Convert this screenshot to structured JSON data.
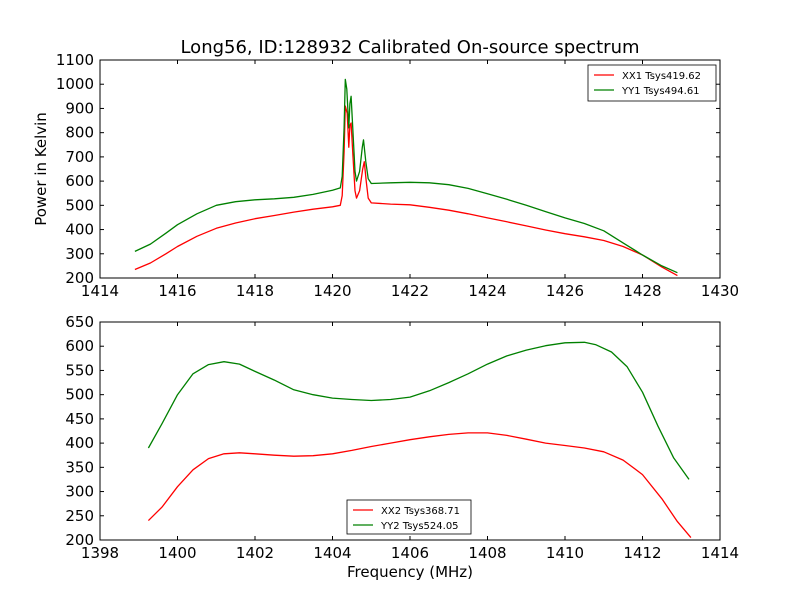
{
  "title": "Long56, ID:128932 Calibrated On-source spectrum",
  "chart_data": [
    {
      "type": "line",
      "ylabel": "Power in Kelvin",
      "xlabel": "",
      "xlim": [
        1414,
        1430
      ],
      "ylim": [
        200,
        1100
      ],
      "xticks": [
        1414,
        1416,
        1418,
        1420,
        1422,
        1424,
        1426,
        1428,
        1430
      ],
      "yticks": [
        200,
        300,
        400,
        500,
        600,
        700,
        800,
        900,
        1000,
        1100
      ],
      "grid": false,
      "legend_position": "top-right",
      "series": [
        {
          "name": "XX1 Tsys419.62",
          "color": "#ff0000",
          "points": [
            [
              1414.9,
              235
            ],
            [
              1415.3,
              262
            ],
            [
              1415.7,
              300
            ],
            [
              1416.0,
              330
            ],
            [
              1416.5,
              372
            ],
            [
              1417.0,
              405
            ],
            [
              1417.5,
              427
            ],
            [
              1418.0,
              445
            ],
            [
              1418.5,
              458
            ],
            [
              1419.0,
              472
            ],
            [
              1419.5,
              484
            ],
            [
              1420.0,
              494
            ],
            [
              1420.2,
              500
            ],
            [
              1420.25,
              540
            ],
            [
              1420.3,
              720
            ],
            [
              1420.33,
              910
            ],
            [
              1420.38,
              880
            ],
            [
              1420.42,
              740
            ],
            [
              1420.45,
              830
            ],
            [
              1420.48,
              840
            ],
            [
              1420.53,
              700
            ],
            [
              1420.58,
              560
            ],
            [
              1420.62,
              530
            ],
            [
              1420.7,
              560
            ],
            [
              1420.78,
              650
            ],
            [
              1420.82,
              680
            ],
            [
              1420.87,
              600
            ],
            [
              1420.92,
              530
            ],
            [
              1421.0,
              510
            ],
            [
              1421.5,
              505
            ],
            [
              1422.0,
              502
            ],
            [
              1422.5,
              492
            ],
            [
              1423.0,
              480
            ],
            [
              1423.5,
              465
            ],
            [
              1424.0,
              448
            ],
            [
              1424.5,
              432
            ],
            [
              1425.0,
              415
            ],
            [
              1425.5,
              398
            ],
            [
              1426.0,
              383
            ],
            [
              1426.5,
              370
            ],
            [
              1427.0,
              355
            ],
            [
              1427.5,
              330
            ],
            [
              1428.0,
              295
            ],
            [
              1428.5,
              245
            ],
            [
              1428.9,
              210
            ]
          ]
        },
        {
          "name": "YY1 Tsys494.61",
          "color": "#008000",
          "points": [
            [
              1414.9,
              310
            ],
            [
              1415.3,
              340
            ],
            [
              1415.7,
              385
            ],
            [
              1416.0,
              420
            ],
            [
              1416.5,
              465
            ],
            [
              1417.0,
              500
            ],
            [
              1417.5,
              515
            ],
            [
              1418.0,
              523
            ],
            [
              1418.5,
              527
            ],
            [
              1419.0,
              533
            ],
            [
              1419.5,
              545
            ],
            [
              1420.0,
              562
            ],
            [
              1420.2,
              572
            ],
            [
              1420.25,
              620
            ],
            [
              1420.3,
              820
            ],
            [
              1420.33,
              1020
            ],
            [
              1420.37,
              980
            ],
            [
              1420.42,
              820
            ],
            [
              1420.45,
              920
            ],
            [
              1420.48,
              950
            ],
            [
              1420.53,
              800
            ],
            [
              1420.58,
              640
            ],
            [
              1420.62,
              600
            ],
            [
              1420.7,
              640
            ],
            [
              1420.77,
              740
            ],
            [
              1420.8,
              770
            ],
            [
              1420.86,
              680
            ],
            [
              1420.92,
              610
            ],
            [
              1421.0,
              590
            ],
            [
              1421.5,
              593
            ],
            [
              1422.0,
              595
            ],
            [
              1422.5,
              593
            ],
            [
              1423.0,
              585
            ],
            [
              1423.5,
              570
            ],
            [
              1424.0,
              548
            ],
            [
              1424.5,
              525
            ],
            [
              1425.0,
              500
            ],
            [
              1425.5,
              474
            ],
            [
              1426.0,
              448
            ],
            [
              1426.5,
              425
            ],
            [
              1427.0,
              395
            ],
            [
              1427.5,
              345
            ],
            [
              1428.0,
              295
            ],
            [
              1428.5,
              250
            ],
            [
              1428.9,
              222
            ]
          ]
        }
      ]
    },
    {
      "type": "line",
      "ylabel": "",
      "xlabel": "Frequency (MHz)",
      "xlim": [
        1398,
        1414
      ],
      "ylim": [
        200,
        650
      ],
      "xticks": [
        1398,
        1400,
        1402,
        1404,
        1406,
        1408,
        1410,
        1412,
        1414
      ],
      "yticks": [
        200,
        250,
        300,
        350,
        400,
        450,
        500,
        550,
        600,
        650
      ],
      "grid": false,
      "legend_position": "bottom-center",
      "series": [
        {
          "name": "XX2 Tsys368.71",
          "color": "#ff0000",
          "points": [
            [
              1399.25,
              240
            ],
            [
              1399.6,
              268
            ],
            [
              1400.0,
              310
            ],
            [
              1400.4,
              345
            ],
            [
              1400.8,
              368
            ],
            [
              1401.2,
              378
            ],
            [
              1401.6,
              380
            ],
            [
              1402.0,
              378
            ],
            [
              1402.5,
              375
            ],
            [
              1403.0,
              373
            ],
            [
              1403.5,
              374
            ],
            [
              1404.0,
              378
            ],
            [
              1404.5,
              385
            ],
            [
              1405.0,
              393
            ],
            [
              1405.5,
              400
            ],
            [
              1406.0,
              407
            ],
            [
              1406.5,
              413
            ],
            [
              1407.0,
              418
            ],
            [
              1407.5,
              421
            ],
            [
              1408.0,
              421
            ],
            [
              1408.5,
              416
            ],
            [
              1409.0,
              408
            ],
            [
              1409.5,
              400
            ],
            [
              1410.0,
              395
            ],
            [
              1410.5,
              390
            ],
            [
              1411.0,
              382
            ],
            [
              1411.5,
              365
            ],
            [
              1412.0,
              335
            ],
            [
              1412.5,
              285
            ],
            [
              1412.9,
              238
            ],
            [
              1413.25,
              205
            ]
          ]
        },
        {
          "name": "YY2 Tsys524.05",
          "color": "#008000",
          "points": [
            [
              1399.25,
              390
            ],
            [
              1399.6,
              440
            ],
            [
              1400.0,
              500
            ],
            [
              1400.4,
              543
            ],
            [
              1400.8,
              562
            ],
            [
              1401.2,
              568
            ],
            [
              1401.6,
              563
            ],
            [
              1402.0,
              548
            ],
            [
              1402.5,
              530
            ],
            [
              1403.0,
              510
            ],
            [
              1403.5,
              500
            ],
            [
              1404.0,
              493
            ],
            [
              1404.5,
              490
            ],
            [
              1405.0,
              488
            ],
            [
              1405.5,
              490
            ],
            [
              1406.0,
              495
            ],
            [
              1406.5,
              508
            ],
            [
              1407.0,
              525
            ],
            [
              1407.5,
              543
            ],
            [
              1408.0,
              563
            ],
            [
              1408.5,
              580
            ],
            [
              1409.0,
              592
            ],
            [
              1409.5,
              601
            ],
            [
              1410.0,
              607
            ],
            [
              1410.5,
              608
            ],
            [
              1410.8,
              603
            ],
            [
              1411.2,
              588
            ],
            [
              1411.6,
              558
            ],
            [
              1412.0,
              505
            ],
            [
              1412.4,
              435
            ],
            [
              1412.8,
              370
            ],
            [
              1413.2,
              325
            ]
          ]
        }
      ]
    }
  ]
}
